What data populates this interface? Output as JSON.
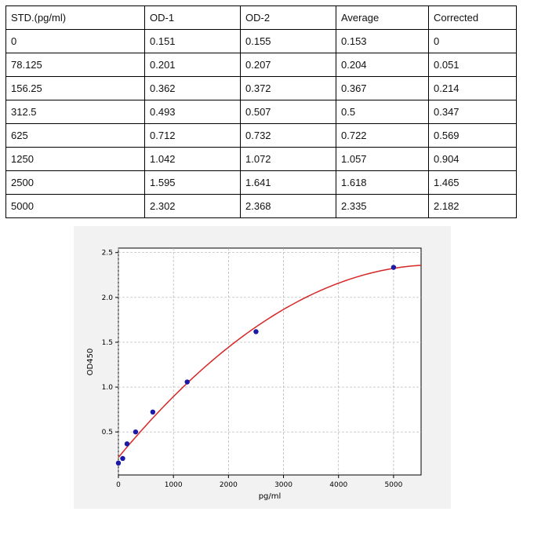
{
  "table": {
    "headers": [
      "STD.(pg/ml)",
      "OD-1",
      "OD-2",
      "Average",
      "Corrected"
    ],
    "rows": [
      [
        "0",
        "0.151",
        "0.155",
        "0.153",
        "0"
      ],
      [
        "78.125",
        "0.201",
        "0.207",
        "0.204",
        "0.051"
      ],
      [
        "156.25",
        "0.362",
        "0.372",
        "0.367",
        "0.214"
      ],
      [
        "312.5",
        "0.493",
        "0.507",
        "0.5",
        "0.347"
      ],
      [
        "625",
        "0.712",
        "0.732",
        "0.722",
        "0.569"
      ],
      [
        "1250",
        "1.042",
        "1.072",
        "1.057",
        "0.904"
      ],
      [
        "2500",
        "1.595",
        "1.641",
        "1.618",
        "1.465"
      ],
      [
        "5000",
        "2.302",
        "2.368",
        "2.335",
        "2.182"
      ]
    ]
  },
  "chart_data": {
    "type": "scatter",
    "xlabel": "pg/ml",
    "ylabel": "OD450",
    "xlim": [
      0,
      5500
    ],
    "ylim": [
      0.02,
      2.55
    ],
    "xticks": [
      0,
      1000,
      2000,
      3000,
      4000,
      5000
    ],
    "yticks": [
      0.5,
      1.0,
      1.5,
      2.0,
      2.5
    ],
    "xtick_labels": [
      "0",
      "1000",
      "2000",
      "3000",
      "4000",
      "5000"
    ],
    "ytick_labels": [
      "0.5",
      "1.0",
      "1.5",
      "2.0",
      "2.5"
    ],
    "grid": true,
    "points": {
      "x": [
        0,
        78.125,
        156.25,
        312.5,
        625,
        1250,
        2500,
        5000
      ],
      "y": [
        0.153,
        0.204,
        0.367,
        0.5,
        0.722,
        1.057,
        1.618,
        2.335
      ]
    },
    "fit_curve": true,
    "colors": {
      "points": "#1a1aa6",
      "curve": "#d62728",
      "grid": "#b0b0b0"
    }
  }
}
